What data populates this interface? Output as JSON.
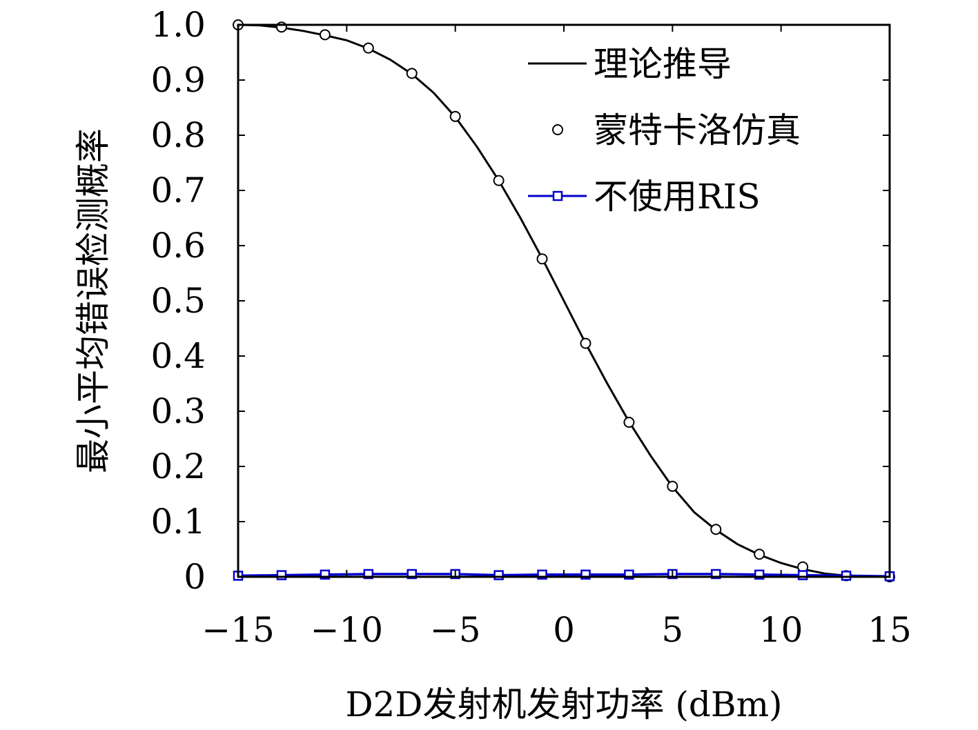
{
  "chart_data": {
    "type": "line",
    "xlabel": "D2D发射机发射功率 (dBm)",
    "ylabel": "最小平均错误检测概率",
    "xlim": [
      -15,
      15
    ],
    "ylim": [
      0,
      1.0
    ],
    "x_ticks": [
      -15,
      -10,
      -5,
      0,
      5,
      10,
      15
    ],
    "x_tick_labels": [
      "−15",
      "−10",
      "−5",
      "0",
      "5",
      "10",
      "15"
    ],
    "y_ticks": [
      0,
      0.1,
      0.2,
      0.3,
      0.4,
      0.5,
      0.6,
      0.7,
      0.8,
      0.9,
      1.0
    ],
    "y_tick_labels": [
      "0",
      "0.1",
      "0.2",
      "0.3",
      "0.4",
      "0.5",
      "0.6",
      "0.7",
      "0.8",
      "0.9",
      "1.0"
    ],
    "grid": false,
    "legend_position": "top-right",
    "series": [
      {
        "name": "理论推导",
        "style": "line",
        "color": "#000000",
        "x": [
          -15,
          -14,
          -13,
          -12,
          -11,
          -10,
          -9,
          -8,
          -7,
          -6,
          -5,
          -4,
          -3,
          -2,
          -1,
          0,
          1,
          2,
          3,
          4,
          5,
          6,
          7,
          8,
          9,
          10,
          11,
          12,
          13,
          14,
          15
        ],
        "values": [
          1.0,
          0.999,
          0.995,
          0.989,
          0.981,
          0.972,
          0.957,
          0.937,
          0.911,
          0.877,
          0.833,
          0.779,
          0.718,
          0.65,
          0.577,
          0.5,
          0.423,
          0.35,
          0.281,
          0.219,
          0.163,
          0.117,
          0.085,
          0.059,
          0.04,
          0.025,
          0.014,
          0.006,
          0.002,
          0.001,
          0.0
        ]
      },
      {
        "name": "蒙特卡洛仿真",
        "style": "markers",
        "marker": "circle",
        "color": "#000000",
        "x": [
          -15,
          -13,
          -11,
          -9,
          -7,
          -5,
          -3,
          -1,
          1,
          3,
          5,
          7,
          9,
          11,
          13,
          15
        ],
        "values": [
          1.0,
          0.996,
          0.982,
          0.958,
          0.912,
          0.834,
          0.718,
          0.576,
          0.423,
          0.28,
          0.164,
          0.086,
          0.041,
          0.018,
          0.002,
          0.0
        ]
      },
      {
        "name": "不使用RIS",
        "style": "line-markers",
        "marker": "square",
        "color": "#0000cc",
        "x": [
          -15,
          -13,
          -11,
          -9,
          -7,
          -5,
          -3,
          -1,
          1,
          3,
          5,
          7,
          9,
          11,
          13,
          15
        ],
        "values": [
          0.002,
          0.003,
          0.004,
          0.005,
          0.005,
          0.005,
          0.003,
          0.004,
          0.004,
          0.004,
          0.005,
          0.005,
          0.004,
          0.003,
          0.002,
          0.001
        ]
      }
    ]
  }
}
